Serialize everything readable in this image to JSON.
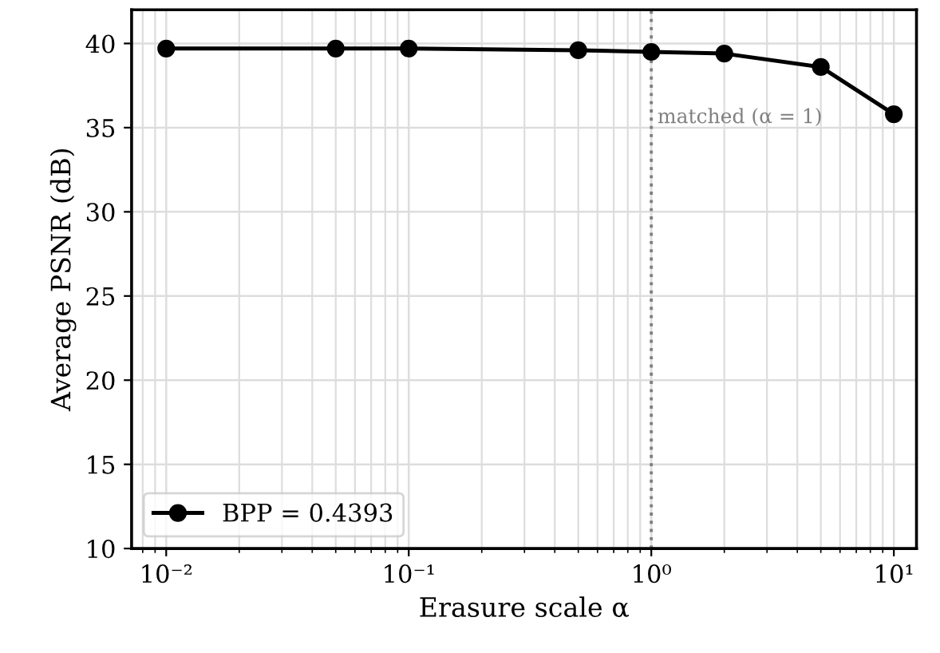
{
  "chart_data": {
    "type": "line",
    "xlabel": "Erasure scale α",
    "ylabel": "Average PSNR (dB)",
    "log": "x",
    "xlim": [
      0.0072,
      12.4
    ],
    "xticks": [
      {
        "value": 0.01,
        "label": "10⁻²"
      },
      {
        "value": 0.1,
        "label": "10⁻¹"
      },
      {
        "value": 1,
        "label": "10⁰"
      },
      {
        "value": 10,
        "label": "10¹"
      }
    ],
    "ylim": [
      10,
      42
    ],
    "yticks": [
      10,
      15,
      20,
      25,
      30,
      35,
      40
    ],
    "x": [
      0.01,
      0.05,
      0.1,
      0.5,
      1,
      2,
      5,
      10
    ],
    "series": [
      {
        "name": "BPP = 0.4393",
        "color": "#000000",
        "values": [
          39.7,
          39.7,
          39.7,
          39.6,
          39.5,
          39.4,
          38.6,
          35.8
        ]
      }
    ],
    "ref_lines": [
      {
        "axis": "x",
        "value": 1,
        "label": "matched (α = 1)",
        "color": "#808080",
        "line_style": "dotted"
      }
    ],
    "grid": true,
    "legend": "bottom left",
    "marker": "circle",
    "line_style": "solid"
  }
}
